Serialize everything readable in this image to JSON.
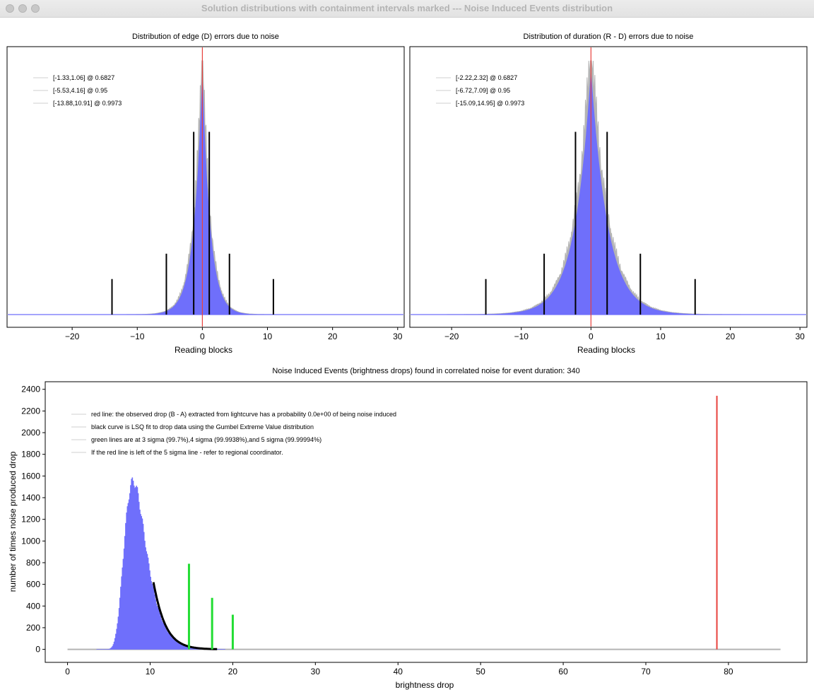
{
  "window": {
    "title": "Solution distributions with containment intervals marked --- Noise Induced Events distribution"
  },
  "colors": {
    "hist": "#6f6ffb",
    "noise": "#b4b4b4",
    "red": "#e8413c",
    "interval": "#000000",
    "green": "#22dd33",
    "frame": "#000000",
    "window_bg": "#ececec"
  },
  "chart_data": [
    {
      "type": "histogram",
      "title": "Distribution of edge (D) errors due to noise",
      "xlabel": "Reading blocks",
      "xlim": [
        -30,
        31
      ],
      "xticks": [
        -20,
        -10,
        0,
        10,
        20,
        30
      ],
      "red_line_x": 0,
      "peak_center": 0,
      "left_width": 1.3,
      "right_width": 1.2,
      "legend": [
        {
          "label": "[-1.33,1.06] @ 0.6827"
        },
        {
          "label": "[-5.53,4.16] @ 0.95"
        },
        {
          "label": "[-13.88,10.91] @ 0.9973"
        }
      ],
      "intervals": [
        {
          "low": -1.33,
          "high": 1.06,
          "level": 0.6827,
          "height": 0.72
        },
        {
          "low": -5.53,
          "high": 4.16,
          "level": 0.95,
          "height": 0.24
        },
        {
          "low": -13.88,
          "high": 10.91,
          "level": 0.9973,
          "height": 0.14
        }
      ]
    },
    {
      "type": "histogram",
      "title": "Distribution of duration (R - D) errors due to noise",
      "xlabel": "Reading blocks",
      "xlim": [
        -26,
        31
      ],
      "xticks": [
        -20,
        -10,
        0,
        10,
        20,
        30
      ],
      "red_line_x": 0,
      "peak_center": 0,
      "left_width": 2.3,
      "right_width": 2.4,
      "legend": [
        {
          "label": "[-2.22,2.32] @ 0.6827"
        },
        {
          "label": "[-6.72,7.09] @ 0.95"
        },
        {
          "label": "[-15.09,14.95] @ 0.9973"
        }
      ],
      "intervals": [
        {
          "low": -2.22,
          "high": 2.32,
          "level": 0.6827,
          "height": 0.72
        },
        {
          "low": -6.72,
          "high": 7.09,
          "level": 0.95,
          "height": 0.24
        },
        {
          "low": -15.09,
          "high": 14.95,
          "level": 0.9973,
          "height": 0.14
        }
      ]
    },
    {
      "type": "histogram",
      "title": "Noise Induced Events (brightness drops) found in correlated noise for event duration: 340",
      "xlabel": "brightness drop",
      "ylabel": "number of times noise produced drop",
      "xlim": [
        -2.7,
        89.5
      ],
      "ylim": [
        -120,
        2470
      ],
      "xticks": [
        0,
        10,
        20,
        30,
        40,
        50,
        60,
        70,
        80
      ],
      "yticks": [
        0,
        200,
        400,
        600,
        800,
        1000,
        1200,
        1400,
        1600,
        1800,
        2000,
        2200,
        2400
      ],
      "legend": [
        {
          "label": "red line: the observed drop (B - A) extracted from lightcurve has a probability 0.0e+00 of being noise induced"
        },
        {
          "label": "black curve is LSQ fit to drop data using the Gumbel Extreme Value distribution"
        },
        {
          "label": "green lines are at 3 sigma (99.7%),4 sigma (99.9938%),and 5 sigma (99.99994%)"
        },
        {
          "label": "If the red line is left of the 5 sigma line - refer to regional coordinator."
        }
      ],
      "histogram": {
        "mode": 7.9,
        "peak": 1550,
        "gumbel_beta": 1.3,
        "bin_width": 0.1,
        "baseline_range": [
          0,
          86.3
        ]
      },
      "fit_curve": {
        "from": 10.4,
        "to": 18.2,
        "start_value": 620
      },
      "green_lines": [
        {
          "x": 14.7,
          "height": 790
        },
        {
          "x": 17.5,
          "height": 475
        },
        {
          "x": 20.0,
          "height": 320
        }
      ],
      "red_line": {
        "x": 78.6,
        "height": 2340
      }
    }
  ]
}
